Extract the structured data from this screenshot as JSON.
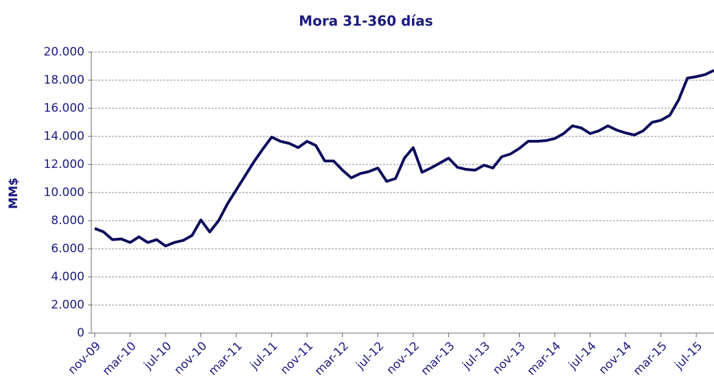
{
  "chart_data": {
    "type": "line",
    "title": "Mora 31-360 días",
    "y_label": "MM$",
    "categories": [
      "nov-09",
      null,
      null,
      null,
      "mar-10",
      null,
      null,
      null,
      "jul-10",
      null,
      null,
      null,
      "nov-10",
      null,
      null,
      null,
      "mar-11",
      null,
      null,
      null,
      "jul-11",
      null,
      null,
      null,
      "nov-11",
      null,
      null,
      null,
      "mar-12",
      null,
      null,
      null,
      "jul-12",
      null,
      null,
      null,
      "nov-12",
      null,
      null,
      null,
      "mar-13",
      null,
      null,
      null,
      "jul-13",
      null,
      null,
      null,
      "nov-13",
      null,
      null,
      null,
      "mar-14",
      null,
      null,
      null,
      "jul-14",
      null,
      null,
      null,
      "nov-14",
      null,
      null,
      null,
      "mar-15",
      null,
      null,
      null,
      "jul-15",
      null,
      null
    ],
    "series": [
      {
        "name": "Mora 31-360 días",
        "color": "#0b0b5c",
        "values": [
          7450,
          7200,
          6650,
          6700,
          6450,
          6850,
          6450,
          6650,
          6200,
          6450,
          6600,
          6950,
          8050,
          7200,
          8000,
          9200,
          10200,
          11200,
          12200,
          13100,
          13950,
          13650,
          13500,
          13200,
          13650,
          13350,
          12250,
          12250,
          11600,
          11050,
          11350,
          11500,
          11750,
          10800,
          11000,
          12450,
          13200,
          11450,
          11750,
          12100,
          12450,
          11800,
          11650,
          11600,
          11950,
          11750,
          12550,
          12750,
          13150,
          13650,
          13650,
          13700,
          13850,
          14200,
          14750,
          14600,
          14200,
          14400,
          14750,
          14450,
          14250,
          14100,
          14400,
          15000,
          15150,
          15500,
          16600,
          18150,
          18250,
          18400,
          18700
        ]
      }
    ],
    "ylim": [
      0,
      20000
    ],
    "yticks": [
      0,
      {
        "value": 2000,
        "label": "2.000"
      },
      {
        "value": 4000,
        "label": "4.000"
      },
      {
        "value": 6000,
        "label": "6.000"
      },
      {
        "value": 8000,
        "label": "8.000"
      },
      {
        "value": 10000,
        "label": "10.000"
      },
      {
        "value": 12000,
        "label": "12.000"
      },
      {
        "value": 14000,
        "label": "14.000"
      },
      {
        "value": 16000,
        "label": "16.000"
      },
      {
        "value": 18000,
        "label": "18.000"
      },
      {
        "value": 20000,
        "label": "20.000"
      }
    ],
    "grid": true
  }
}
